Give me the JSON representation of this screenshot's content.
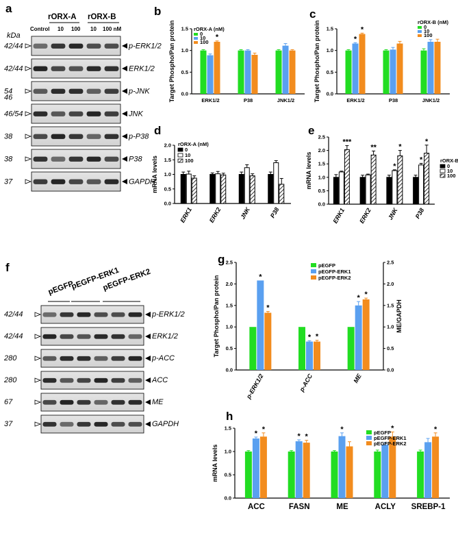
{
  "panel_letters": {
    "a": "a",
    "b": "b",
    "c": "c",
    "d": "d",
    "e": "e",
    "f": "f",
    "g": "g",
    "h": "h"
  },
  "blot_a": {
    "group1": "rORX-A",
    "group2": "rORX-B",
    "lanes": [
      "Control",
      "10",
      "100",
      "10",
      "100 nM"
    ],
    "kda_header": "kDa",
    "rows": [
      {
        "kda": "42/44",
        "name": "p-ERK1/2"
      },
      {
        "kda": "42/44",
        "name": "ERK1/2"
      },
      {
        "kda": "54",
        "kda2": "46",
        "name": "p-JNK"
      },
      {
        "kda": "46/54",
        "name": "JNK"
      },
      {
        "kda": "38",
        "name": "p-P38"
      },
      {
        "kda": "38",
        "name": "P38"
      },
      {
        "kda": "37",
        "name": "GAPDH"
      }
    ]
  },
  "blot_f": {
    "lanes": [
      "pEGFP",
      "pEGFP-ERK1",
      "pEGFP-ERK2"
    ],
    "rows": [
      {
        "kda": "42/44",
        "name": "p-ERK1/2"
      },
      {
        "kda": "42/44",
        "name": "ERK1/2"
      },
      {
        "kda": "280",
        "name": "p-ACC"
      },
      {
        "kda": "280",
        "name": "ACC"
      },
      {
        "kda": "67",
        "name": "ME"
      },
      {
        "kda": "37",
        "name": "GAPDH"
      }
    ]
  },
  "colors": {
    "green": "#22dd22",
    "blue": "#5aa0f0",
    "orange": "#f28c1e"
  },
  "chart_data": [
    {
      "id": "b",
      "type": "bar",
      "ylabel": "Target Phospho/Pan protein",
      "legend_title": "rORX-A (nM)",
      "categories": [
        "ERK1/2",
        "P38",
        "JNK1/2"
      ],
      "series": [
        {
          "name": "0",
          "values": [
            1.0,
            1.0,
            1.0
          ]
        },
        {
          "name": "10",
          "values": [
            0.89,
            1.0,
            1.11
          ]
        },
        {
          "name": "100",
          "values": [
            1.2,
            0.9,
            1.0
          ]
        }
      ],
      "errors": [
        [
          0.02,
          0.02,
          0.02
        ],
        [
          0.03,
          0.02,
          0.05
        ],
        [
          0.02,
          0.04,
          0.02
        ]
      ],
      "stars": [
        [
          "",
          "",
          ""
        ],
        [
          "",
          "",
          ""
        ],
        [
          "*",
          "",
          ""
        ]
      ],
      "ylim": [
        0,
        1.5
      ],
      "yticks": [
        "0.0",
        "0.5",
        "1.0",
        "1.5"
      ]
    },
    {
      "id": "c",
      "type": "bar",
      "ylabel": "Target Phospho/Pan protein",
      "legend_title": "rORX-B (nM)",
      "categories": [
        "ERK1/2",
        "P38",
        "JNK1/2"
      ],
      "series": [
        {
          "name": "0",
          "values": [
            1.0,
            1.0,
            1.0
          ]
        },
        {
          "name": "10",
          "values": [
            1.16,
            1.02,
            1.2
          ]
        },
        {
          "name": "100",
          "values": [
            1.38,
            1.16,
            1.2
          ]
        }
      ],
      "errors": [
        [
          0.02,
          0.02,
          0.04
        ],
        [
          0.02,
          0.05,
          0.05
        ],
        [
          0.02,
          0.05,
          0.06
        ]
      ],
      "stars": [
        [
          "",
          "",
          ""
        ],
        [
          "*",
          "",
          ""
        ],
        [
          "*",
          "",
          ""
        ]
      ],
      "ylim": [
        0,
        1.5
      ],
      "yticks": [
        "0.0",
        "0.5",
        "1.0",
        "1.5"
      ]
    },
    {
      "id": "d",
      "type": "bar",
      "ylabel": "mRNA levels",
      "legend_title": "rORX-A (nM)",
      "categories": [
        "ERK1",
        "ERK2",
        "JNK",
        "P38"
      ],
      "series": [
        {
          "name": "0",
          "values": [
            1.0,
            1.0,
            1.0,
            1.0
          ]
        },
        {
          "name": "10",
          "values": [
            1.01,
            1.02,
            1.23,
            1.4
          ]
        },
        {
          "name": "100",
          "values": [
            0.87,
            0.98,
            0.95,
            0.66
          ]
        }
      ],
      "errors": [
        [
          0.08,
          0.05,
          0.08,
          0.08
        ],
        [
          0.1,
          0.08,
          0.1,
          0.07
        ],
        [
          0.08,
          0.06,
          0.07,
          0.2
        ]
      ],
      "stars": [
        [
          "",
          "",
          "",
          ""
        ],
        [
          "",
          "",
          "",
          ""
        ],
        [
          "",
          "",
          "",
          ""
        ]
      ],
      "ylim": [
        0,
        2.0
      ],
      "yticks": [
        "0.0",
        "0.5",
        "1.0",
        "1.5",
        "2.0"
      ]
    },
    {
      "id": "e",
      "type": "bar",
      "ylabel": "mRNA levels",
      "legend_title": "rORX-B (nM)",
      "categories": [
        "ERK1",
        "ERK2",
        "JNK",
        "P38"
      ],
      "series": [
        {
          "name": "0",
          "values": [
            1.0,
            1.0,
            1.0,
            1.0
          ]
        },
        {
          "name": "10",
          "values": [
            1.2,
            1.09,
            1.25,
            1.46
          ]
        },
        {
          "name": "100",
          "values": [
            2.03,
            1.83,
            1.8,
            1.9
          ]
        }
      ],
      "errors": [
        [
          0.1,
          0.08,
          0.08,
          0.08
        ],
        [
          0.03,
          0.03,
          0.03,
          0.06
        ],
        [
          0.15,
          0.15,
          0.2,
          0.3
        ]
      ],
      "stars": [
        [
          "",
          "",
          "",
          ""
        ],
        [
          "",
          "",
          "*",
          "*"
        ],
        [
          "***",
          "**",
          "*",
          "*"
        ]
      ],
      "ylim": [
        0,
        2.5
      ],
      "yticks": [
        "0.0",
        "0.5",
        "1.0",
        "1.5",
        "2.0",
        "2.5"
      ]
    },
    {
      "id": "g",
      "type": "bar",
      "ylabel": "Target Phospho/Pan protein",
      "ylabel_right": "ME/GAPDH",
      "categories": [
        "p-ERK1/2",
        "p-ACC",
        "ME"
      ],
      "series": [
        {
          "name": "pEGFP",
          "values": [
            1.0,
            1.0,
            1.0
          ]
        },
        {
          "name": "pEGFP-ERK1",
          "values": [
            2.08,
            0.66,
            1.5
          ]
        },
        {
          "name": "pEGFP-ERK2",
          "values": [
            1.33,
            0.66,
            1.64
          ]
        }
      ],
      "errors": [
        [
          0,
          0,
          0
        ],
        [
          0,
          0.02,
          0.09
        ],
        [
          0.03,
          0.03,
          0.03
        ]
      ],
      "stars": [
        [
          "",
          "",
          ""
        ],
        [
          "*",
          "*",
          "*"
        ],
        [
          "*",
          "*",
          "*"
        ]
      ],
      "ylim": [
        0,
        2.5
      ],
      "yticks": [
        "0.0",
        "0.5",
        "1.0",
        "1.5",
        "2.0",
        "2.5"
      ]
    },
    {
      "id": "h",
      "type": "bar",
      "ylabel": "mRNA levels",
      "categories": [
        "ACC",
        "FASN",
        "ME",
        "ACLY",
        "SREBP-1"
      ],
      "series": [
        {
          "name": "pEGFP",
          "values": [
            1.0,
            1.0,
            1.0,
            1.0,
            1.0
          ]
        },
        {
          "name": "pEGFP-ERK1",
          "values": [
            1.28,
            1.22,
            1.33,
            1.15,
            1.2
          ]
        },
        {
          "name": "pEGFP-ERK2",
          "values": [
            1.32,
            1.19,
            1.11,
            1.32,
            1.32
          ]
        }
      ],
      "errors": [
        [
          0.02,
          0.02,
          0.02,
          0.03,
          0.03
        ],
        [
          0.03,
          0.03,
          0.07,
          0.04,
          0.08
        ],
        [
          0.08,
          0.05,
          0.1,
          0.1,
          0.08
        ]
      ],
      "stars": [
        [
          "",
          "",
          "",
          "",
          ""
        ],
        [
          "*",
          "*",
          "*",
          "",
          ""
        ],
        [
          "*",
          "*",
          "",
          "*",
          "*"
        ]
      ],
      "ylim": [
        0,
        1.5
      ],
      "yticks": [
        "0.0",
        "0.5",
        "1.0",
        "1.5"
      ]
    }
  ]
}
